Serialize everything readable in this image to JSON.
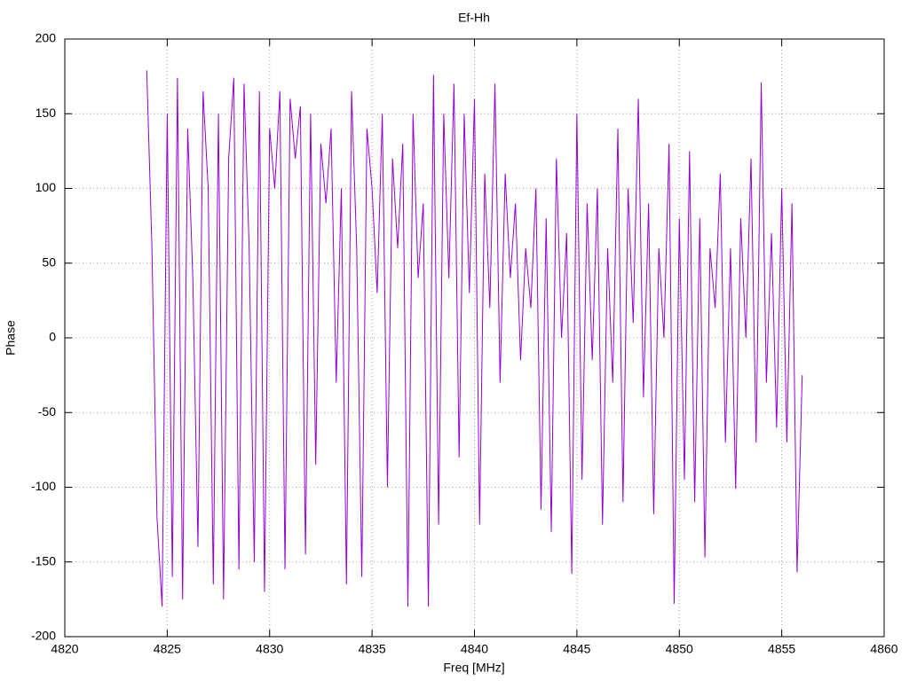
{
  "chart_data": {
    "type": "line",
    "title": "Ef-Hh",
    "xlabel": "Freq [MHz]",
    "ylabel": "Phase",
    "x": [
      4824,
      4824.25,
      4824.5,
      4824.75,
      4825,
      4825.25,
      4825.5,
      4825.75,
      4826,
      4826.25,
      4826.5,
      4826.75,
      4827,
      4827.25,
      4827.5,
      4827.75,
      4828,
      4828.25,
      4828.5,
      4828.75,
      4829,
      4829.25,
      4829.5,
      4829.75,
      4830,
      4830.25,
      4830.5,
      4830.75,
      4831,
      4831.25,
      4831.5,
      4831.75,
      4832,
      4832.25,
      4832.5,
      4832.75,
      4833,
      4833.25,
      4833.5,
      4833.75,
      4834,
      4834.25,
      4834.5,
      4834.75,
      4835,
      4835.25,
      4835.5,
      4835.75,
      4836,
      4836.25,
      4836.5,
      4836.75,
      4837,
      4837.25,
      4837.5,
      4837.75,
      4838,
      4838.25,
      4838.5,
      4838.75,
      4839,
      4839.25,
      4839.5,
      4839.75,
      4840,
      4840.25,
      4840.5,
      4840.75,
      4841,
      4841.25,
      4841.5,
      4841.75,
      4842,
      4842.25,
      4842.5,
      4842.75,
      4843,
      4843.25,
      4843.5,
      4843.75,
      4844,
      4844.25,
      4844.5,
      4844.75,
      4845,
      4845.25,
      4845.5,
      4845.75,
      4846,
      4846.25,
      4846.5,
      4846.75,
      4847,
      4847.25,
      4847.5,
      4847.75,
      4848,
      4848.25,
      4848.5,
      4848.75,
      4849,
      4849.25,
      4849.5,
      4849.75,
      4850,
      4850.25,
      4850.5,
      4850.75,
      4851,
      4851.25,
      4851.5,
      4851.75,
      4852,
      4852.25,
      4852.5,
      4852.75,
      4853,
      4853.25,
      4853.5,
      4853.75,
      4854,
      4854.25,
      4854.5,
      4854.75,
      4855,
      4855.25,
      4855.5,
      4855.75,
      4856
    ],
    "values": [
      179,
      62,
      -120,
      -180,
      150,
      -160,
      174,
      -175,
      140,
      40,
      -140,
      165,
      100,
      -165,
      150,
      -175,
      120,
      174,
      -155,
      170,
      60,
      -150,
      165,
      -170,
      140,
      100,
      165,
      -155,
      160,
      120,
      155,
      -145,
      150,
      -85,
      130,
      90,
      140,
      -30,
      100,
      -165,
      165,
      60,
      -160,
      140,
      100,
      30,
      150,
      -100,
      120,
      60,
      130,
      -180,
      150,
      40,
      90,
      -180,
      176,
      -125,
      150,
      40,
      170,
      -80,
      150,
      30,
      160,
      -125,
      110,
      20,
      170,
      -30,
      110,
      40,
      90,
      -15,
      60,
      20,
      100,
      -115,
      80,
      -130,
      120,
      0,
      70,
      -158,
      150,
      -95,
      90,
      -15,
      100,
      -125,
      60,
      -30,
      140,
      -110,
      100,
      10,
      160,
      -40,
      90,
      -118,
      60,
      0,
      130,
      -178,
      80,
      -95,
      125,
      -110,
      80,
      -147,
      60,
      20,
      110,
      -70,
      60,
      -101,
      80,
      0,
      120,
      -70,
      171,
      -30,
      70,
      -60,
      100,
      -70,
      90,
      -157,
      -25
    ],
    "color": "#9400d3",
    "xlim": [
      4820,
      4860
    ],
    "xticks": [
      4820,
      4825,
      4830,
      4835,
      4840,
      4845,
      4850,
      4855,
      4860
    ],
    "ylim": [
      -200,
      200
    ],
    "yticks": [
      -200,
      -150,
      -100,
      -50,
      0,
      50,
      100,
      150,
      200
    ],
    "grid": true
  }
}
